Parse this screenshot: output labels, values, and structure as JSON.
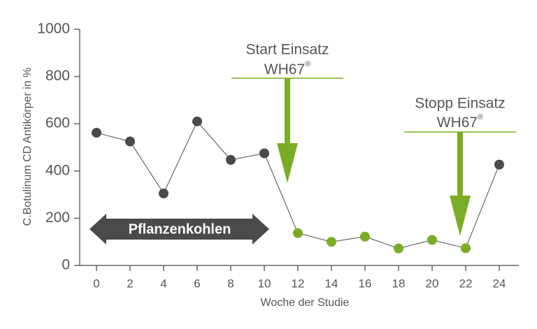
{
  "chart_data": {
    "type": "line",
    "x_label": "Woche der Studie",
    "y_label": "C.Botulinum CD Antikörper in %",
    "x": [
      0,
      2,
      4,
      6,
      8,
      10,
      12,
      14,
      16,
      18,
      20,
      22,
      24
    ],
    "series": [
      {
        "color": "#666666",
        "values": [
          562,
          525,
          305,
          610,
          447,
          475,
          137,
          100,
          122,
          72,
          108,
          73,
          427
        ],
        "point_colors": [
          "#4a4a4c",
          "#4a4a4c",
          "#4a4a4c",
          "#4a4a4c",
          "#4a4a4c",
          "#4a4a4c",
          "#7aac26",
          "#7aac26",
          "#7aac26",
          "#7aac26",
          "#7aac26",
          "#7aac26",
          "#4a4a4c"
        ]
      }
    ],
    "xlim": [
      -1,
      25
    ],
    "xticks": [
      0,
      2,
      4,
      6,
      8,
      10,
      12,
      14,
      16,
      18,
      20,
      22,
      24
    ],
    "ylim": [
      0,
      1000
    ],
    "yticks": [
      0,
      200,
      400,
      600,
      800,
      1000
    ],
    "grid": false,
    "annotations": {
      "start": {
        "line1": "Start Einsatz",
        "line2": "WH67",
        "mark": "®"
      },
      "stop": {
        "line1": "Stopp Einsatz",
        "line2": "WH67",
        "mark": "®"
      },
      "banner": "Pflanzenkohlen"
    }
  }
}
